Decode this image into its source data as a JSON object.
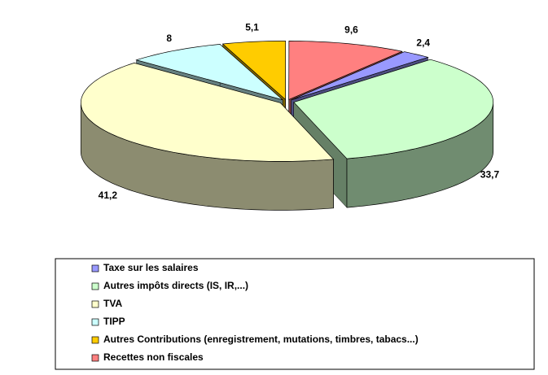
{
  "chart_data": {
    "type": "pie3d",
    "categories": [
      "Taxe sur les salaires",
      "Autres impôts directs (IS, IR,...)",
      "TVA",
      "TIPP",
      "Autres Contributions (enregistrement, mutations, timbres, tabacs...)",
      "Recettes non fiscales"
    ],
    "values": [
      2.4,
      33.7,
      41.2,
      8,
      5.1,
      9.6
    ],
    "value_labels": [
      "2,4",
      "33,7",
      "41,2",
      "8",
      "5,1",
      "9,6"
    ],
    "colors": [
      "#9999ff",
      "#ccffcc",
      "#ffffcc",
      "#ccffff",
      "#ffcc00",
      "#ff8080"
    ],
    "legend": "bottom"
  }
}
